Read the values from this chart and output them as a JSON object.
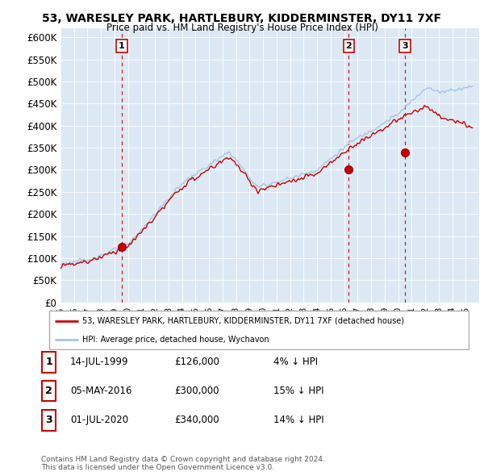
{
  "title": "53, WARESLEY PARK, HARTLEBURY, KIDDERMINSTER, DY11 7XF",
  "subtitle": "Price paid vs. HM Land Registry's House Price Index (HPI)",
  "ylabel_ticks": [
    "£0",
    "£50K",
    "£100K",
    "£150K",
    "£200K",
    "£250K",
    "£300K",
    "£350K",
    "£400K",
    "£450K",
    "£500K",
    "£550K",
    "£600K"
  ],
  "ylim": [
    0,
    620000
  ],
  "ytick_values": [
    0,
    50000,
    100000,
    150000,
    200000,
    250000,
    300000,
    350000,
    400000,
    450000,
    500000,
    550000,
    600000
  ],
  "sale_dates_dec": [
    1999.54,
    2016.34,
    2020.5
  ],
  "sale_prices": [
    126000,
    300000,
    340000
  ],
  "sale_labels": [
    "1",
    "2",
    "3"
  ],
  "hpi_color": "#a8c4e0",
  "price_color": "#cc0000",
  "legend_price_label": "53, WARESLEY PARK, HARTLEBURY, KIDDERMINSTER, DY11 7XF (detached house)",
  "legend_hpi_label": "HPI: Average price, detached house, Wychavon",
  "table_rows": [
    [
      "1",
      "14-JUL-1999",
      "£126,000",
      "4% ↓ HPI"
    ],
    [
      "2",
      "05-MAY-2016",
      "£300,000",
      "15% ↓ HPI"
    ],
    [
      "3",
      "01-JUL-2020",
      "£340,000",
      "14% ↓ HPI"
    ]
  ],
  "footnote": "Contains HM Land Registry data © Crown copyright and database right 2024.\nThis data is licensed under the Open Government Licence v3.0.",
  "plot_bg_color": "#dce9f5",
  "grid_color": "#ffffff"
}
